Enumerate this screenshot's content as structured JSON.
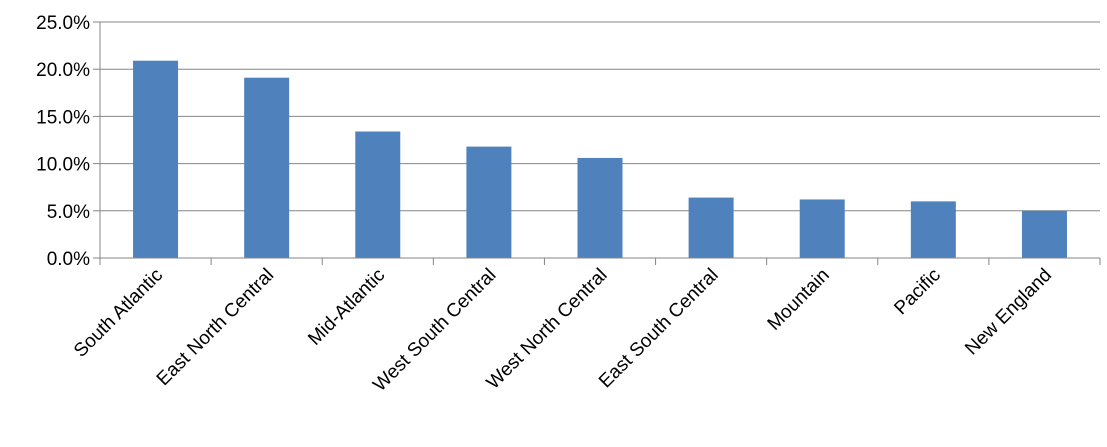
{
  "chart_data": {
    "type": "bar",
    "title": "",
    "xlabel": "",
    "ylabel": "",
    "categories": [
      "South Atlantic",
      "East North Central",
      "Mid-Atlantic",
      "West South Central",
      "West North Central",
      "East South Central",
      "Mountain",
      "Pacific",
      "New England"
    ],
    "values": [
      20.9,
      19.1,
      13.4,
      11.8,
      10.6,
      6.4,
      6.2,
      6.0,
      5.0
    ],
    "ylim": [
      0,
      25
    ],
    "yticks": [
      0,
      5,
      10,
      15,
      20,
      25
    ],
    "ytick_labels": [
      "0.0%",
      "5.0%",
      "10.0%",
      "15.0%",
      "20.0%",
      "25.0%"
    ],
    "grid": "y-major",
    "legend": "none",
    "colors": {
      "bar": "#4f81bd",
      "grid": "#868686",
      "axis": "#868686"
    }
  }
}
